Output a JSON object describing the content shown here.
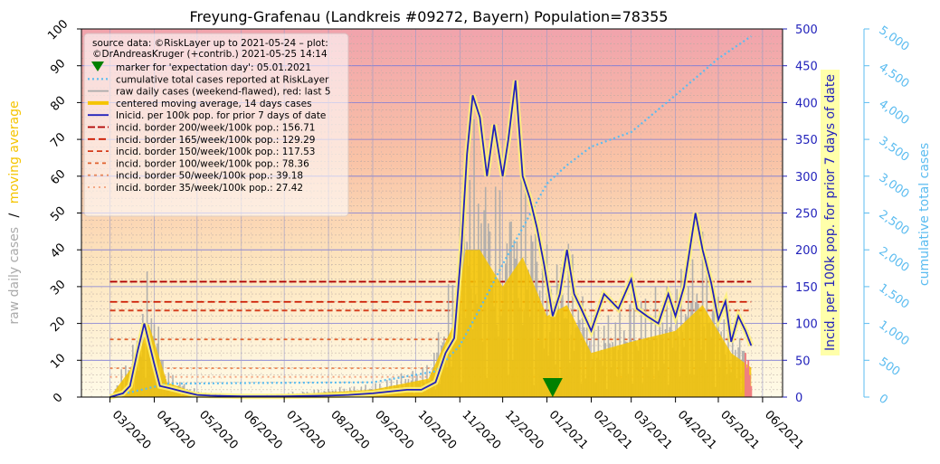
{
  "chart_data": {
    "type": "line",
    "title": "Freyung-Grafenau (Landkreis #09272, Bayern) Population=78355",
    "left_axis": {
      "label_raw": "raw daily cases",
      "label_sep": "/",
      "label_avg": "moving average",
      "ylim": [
        0,
        100
      ],
      "ticks": [
        "0",
        "10",
        "20",
        "30",
        "40",
        "50",
        "60",
        "70",
        "80",
        "90",
        "100"
      ]
    },
    "right_axis_incidence": {
      "label": "Incid. per 100k pop. for prior 7 days of date",
      "ylim": [
        0,
        500
      ],
      "ticks": [
        "0",
        "50",
        "100",
        "150",
        "200",
        "250",
        "300",
        "350",
        "400",
        "450",
        "500"
      ]
    },
    "right_axis_cumulative": {
      "label": "cumulative total cases",
      "ylim": [
        0,
        5000
      ],
      "ticks": [
        "0",
        "500",
        "1,000",
        "1,500",
        "2,000",
        "2,500",
        "3,000",
        "3,500",
        "4,000",
        "4,500",
        "5,000"
      ]
    },
    "x_axis": {
      "ticks": [
        "03/2020",
        "04/2020",
        "05/2020",
        "06/2020",
        "07/2020",
        "08/2020",
        "09/2020",
        "10/2020",
        "11/2020",
        "12/2020",
        "01/2021",
        "02/2021",
        "03/2021",
        "04/2021",
        "05/2021",
        "06/2021"
      ]
    },
    "legend": {
      "position": "top-left",
      "source": "source data: ©RiskLayer up to 2021-05-24 – plot:",
      "credit": "©DrAndreasKruger (+contrib.) 2021-05-25 14:14",
      "entries": [
        {
          "label": "marker for 'expectation day': 05.01.2021",
          "kind": "marker",
          "color": "#008000"
        },
        {
          "label": "cumulative total cases reported at RiskLayer",
          "kind": "dotted",
          "color": "#5bbcf0"
        },
        {
          "label": "raw daily cases (weekend-flawed), red: last 5",
          "kind": "line",
          "color": "#aaaaaa"
        },
        {
          "label": "centered moving average, 14 days cases",
          "kind": "thick",
          "color": "#f5c400"
        },
        {
          "label": "Inicid. per 100k pop. for prior 7 days of date",
          "kind": "line",
          "color": "#2222bb"
        },
        {
          "label": "incid. border 200/week/100k pop.: 156.71",
          "kind": "dash",
          "color": "#b00000"
        },
        {
          "label": "incid. border 165/week/100k pop.: 129.29",
          "kind": "dash",
          "color": "#cc1a00"
        },
        {
          "label": "incid. border 150/week/100k pop.: 117.53",
          "kind": "dash",
          "color": "#d43a1a"
        },
        {
          "label": "incid. border 100/week/100k pop.: 78.36",
          "kind": "dash",
          "color": "#e0602e"
        },
        {
          "label": "incid. border   50/week/100k pop.: 39.18",
          "kind": "dash",
          "color": "#ec8a5a"
        },
        {
          "label": "incid. border   35/week/100k pop.: 27.42",
          "kind": "dash",
          "color": "#f2a07a"
        }
      ]
    },
    "incidence_borders": [
      156.71,
      129.29,
      117.53,
      78.36,
      39.18,
      27.42
    ],
    "expectation_day": "2021-01-05",
    "series": [
      {
        "name": "Inicid. per 100k pop. for prior 7 days of date",
        "axis": "incidence",
        "color": "#2222bb",
        "x": [
          "2020-03-01",
          "2020-03-10",
          "2020-03-15",
          "2020-03-20",
          "2020-03-25",
          "2020-04-01",
          "2020-04-05",
          "2020-04-12",
          "2020-04-20",
          "2020-05-01",
          "2020-05-10",
          "2020-06-01",
          "2020-07-01",
          "2020-08-01",
          "2020-08-15",
          "2020-09-01",
          "2020-09-15",
          "2020-09-25",
          "2020-10-05",
          "2020-10-15",
          "2020-10-22",
          "2020-10-28",
          "2020-11-02",
          "2020-11-06",
          "2020-11-10",
          "2020-11-15",
          "2020-11-20",
          "2020-11-25",
          "2020-12-01",
          "2020-12-05",
          "2020-12-10",
          "2020-12-15",
          "2020-12-20",
          "2020-12-25",
          "2020-12-30",
          "2021-01-05",
          "2021-01-10",
          "2021-01-15",
          "2021-01-20",
          "2021-01-25",
          "2021-02-01",
          "2021-02-10",
          "2021-02-20",
          "2021-03-01",
          "2021-03-05",
          "2021-03-12",
          "2021-03-20",
          "2021-03-27",
          "2021-04-01",
          "2021-04-07",
          "2021-04-15",
          "2021-04-20",
          "2021-04-26",
          "2021-05-01",
          "2021-05-06",
          "2021-05-10",
          "2021-05-15",
          "2021-05-20",
          "2021-05-24"
        ],
        "values": [
          0,
          5,
          15,
          60,
          100,
          45,
          15,
          12,
          8,
          3,
          2,
          1,
          1,
          2,
          3,
          5,
          8,
          10,
          10,
          20,
          60,
          80,
          200,
          330,
          410,
          380,
          300,
          370,
          300,
          350,
          430,
          300,
          270,
          230,
          180,
          110,
          140,
          200,
          140,
          120,
          90,
          140,
          120,
          160,
          120,
          110,
          100,
          140,
          110,
          150,
          250,
          200,
          155,
          105,
          130,
          75,
          110,
          90,
          70
        ]
      },
      {
        "name": "centered moving average, 14 days cases",
        "axis": "left",
        "color": "#f5c400",
        "x": [
          "2020-03-01",
          "2020-03-20",
          "2020-03-28",
          "2020-04-10",
          "2020-05-01",
          "2020-06-01",
          "2020-09-01",
          "2020-10-10",
          "2020-10-28",
          "2020-11-05",
          "2020-11-15",
          "2020-12-01",
          "2020-12-15",
          "2021-01-01",
          "2021-01-15",
          "2021-02-01",
          "2021-03-01",
          "2021-04-01",
          "2021-04-20",
          "2021-05-10",
          "2021-05-24"
        ],
        "values": [
          0,
          10,
          20,
          4,
          1,
          0,
          2,
          5,
          20,
          40,
          40,
          30,
          38,
          22,
          25,
          12,
          15,
          18,
          25,
          12,
          8
        ]
      },
      {
        "name": "cumulative total cases reported at RiskLayer",
        "axis": "cumulative",
        "color": "#5bbcf0",
        "x": [
          "2020-03-01",
          "2020-04-10",
          "2020-06-01",
          "2020-09-01",
          "2020-10-15",
          "2020-11-01",
          "2020-11-15",
          "2020-12-01",
          "2020-12-15",
          "2021-01-01",
          "2021-01-15",
          "2021-02-01",
          "2021-03-01",
          "2021-04-01",
          "2021-05-01",
          "2021-05-24"
        ],
        "values": [
          0,
          180,
          190,
          200,
          350,
          700,
          1200,
          1800,
          2300,
          2900,
          3150,
          3400,
          3600,
          4100,
          4600,
          4900
        ]
      }
    ],
    "last_five_raw_days": {
      "color": "#f08080",
      "values": [
        12,
        8,
        10,
        6,
        3
      ]
    }
  }
}
